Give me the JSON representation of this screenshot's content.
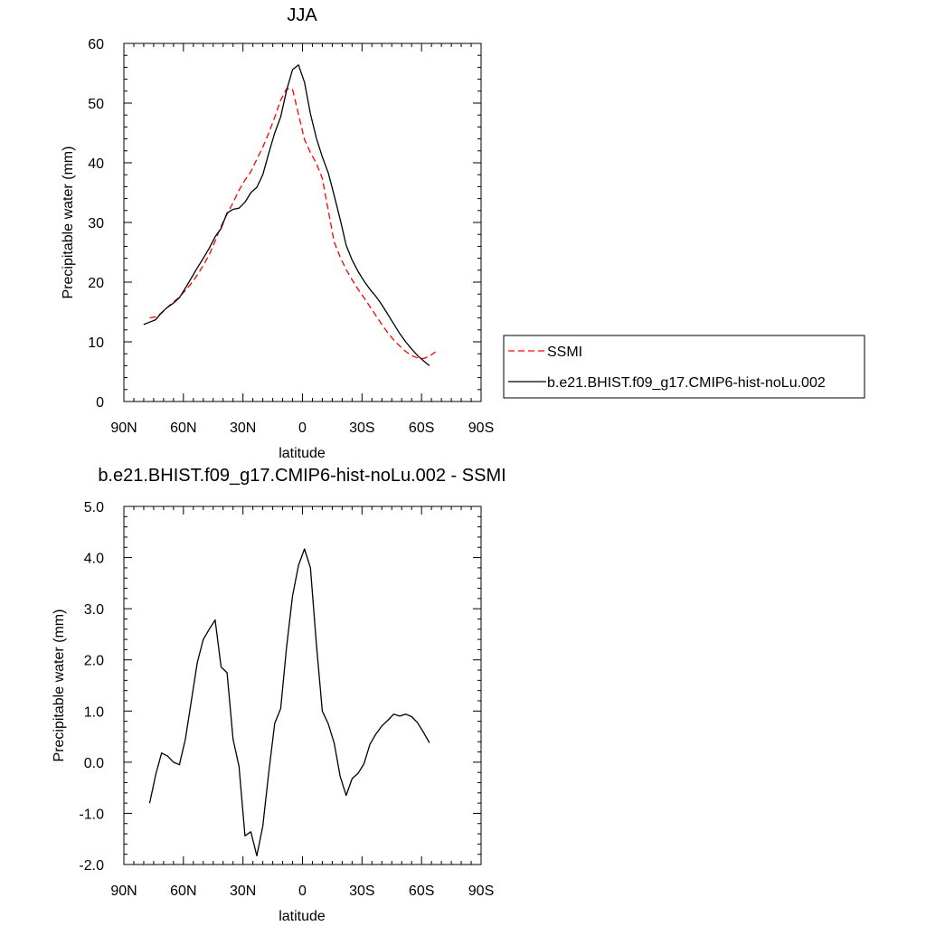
{
  "legend": {
    "entries": [
      {
        "label": "SSMI",
        "color": "#ff0000",
        "dash": true
      },
      {
        "label": "b.e21.BHIST.f09_g17.CMIP6-hist-noLu.002",
        "color": "#000000",
        "dash": false
      }
    ]
  },
  "chart_data": [
    {
      "type": "line",
      "title": "JJA",
      "xlabel": "latitude",
      "ylabel": "Precipitable water (mm)",
      "xlim": [
        90,
        -90
      ],
      "ylim": [
        0,
        60
      ],
      "xticks": [
        {
          "value": 90,
          "label": "90N"
        },
        {
          "value": 60,
          "label": "60N"
        },
        {
          "value": 30,
          "label": "30N"
        },
        {
          "value": 0,
          "label": "0"
        },
        {
          "value": -30,
          "label": "30S"
        },
        {
          "value": -60,
          "label": "60S"
        },
        {
          "value": -90,
          "label": "90S"
        }
      ],
      "yticks": [
        {
          "value": 0,
          "label": "0"
        },
        {
          "value": 10,
          "label": "10"
        },
        {
          "value": 20,
          "label": "20"
        },
        {
          "value": 30,
          "label": "30"
        },
        {
          "value": 40,
          "label": "40"
        },
        {
          "value": 50,
          "label": "50"
        },
        {
          "value": 60,
          "label": "60"
        }
      ],
      "series": [
        {
          "name": "SSMI",
          "color": "#ff0000",
          "dash": true,
          "x": [
            77,
            74,
            71,
            68,
            65,
            62,
            59,
            56,
            53,
            50,
            47,
            44,
            41,
            38,
            35,
            32,
            29,
            26,
            23,
            20,
            17,
            14,
            11,
            8,
            5,
            2,
            -1,
            -4,
            -7,
            -10,
            -13,
            -16,
            -19,
            -22,
            -25,
            -28,
            -31,
            -34,
            -37,
            -40,
            -43,
            -46,
            -49,
            -52,
            -55,
            -58,
            -61,
            -64,
            -67
          ],
          "y": [
            14.0,
            14.2,
            14.8,
            15.8,
            16.7,
            17.5,
            18.6,
            19.8,
            21.2,
            22.8,
            24.6,
            26.9,
            29.4,
            31.4,
            33.3,
            35.4,
            37.1,
            38.5,
            40.6,
            42.6,
            45.0,
            47.6,
            50.5,
            52.4,
            52.3,
            48.1,
            43.9,
            41.7,
            39.9,
            37.4,
            32.0,
            26.7,
            24.2,
            22.1,
            20.4,
            18.8,
            17.4,
            15.9,
            14.4,
            12.9,
            11.5,
            10.3,
            9.3,
            8.4,
            7.7,
            7.3,
            7.2,
            7.6,
            8.3
          ]
        },
        {
          "name": "b.e21.BHIST.f09_g17.CMIP6-hist-noLu.002",
          "color": "#000000",
          "dash": false,
          "x": [
            80,
            77,
            74,
            71,
            68,
            65,
            62,
            59,
            56,
            53,
            50,
            47,
            44,
            41,
            38,
            35,
            32,
            29,
            26,
            23,
            20,
            17,
            14,
            11,
            8,
            5,
            2,
            -1,
            -4,
            -7,
            -10,
            -13,
            -16,
            -19,
            -22,
            -25,
            -28,
            -31,
            -34,
            -37,
            -40,
            -43,
            -46,
            -49,
            -52,
            -55,
            -58,
            -61,
            -64
          ],
          "y": [
            12.9,
            13.3,
            13.7,
            14.9,
            15.8,
            16.5,
            17.4,
            19.0,
            20.7,
            22.4,
            24.0,
            25.7,
            27.6,
            29.0,
            31.6,
            32.2,
            32.4,
            33.4,
            35.0,
            35.9,
            38.0,
            41.6,
            45.0,
            47.7,
            52.1,
            55.6,
            56.4,
            53.5,
            48.2,
            44.1,
            41.0,
            38.3,
            34.5,
            30.5,
            26.2,
            23.7,
            21.8,
            20.2,
            18.8,
            17.6,
            16.2,
            14.6,
            13.0,
            11.4,
            10.0,
            8.8,
            7.7,
            6.8,
            6.0
          ]
        }
      ]
    },
    {
      "type": "line",
      "title": "b.e21.BHIST.f09_g17.CMIP6-hist-noLu.002 - SSMI",
      "xlabel": "latitude",
      "ylabel": "Precipitable water (mm)",
      "xlim": [
        90,
        -90
      ],
      "ylim": [
        -2.0,
        5.0
      ],
      "xticks": [
        {
          "value": 90,
          "label": "90N"
        },
        {
          "value": 60,
          "label": "60N"
        },
        {
          "value": 30,
          "label": "30N"
        },
        {
          "value": 0,
          "label": "0"
        },
        {
          "value": -30,
          "label": "30S"
        },
        {
          "value": -60,
          "label": "60S"
        },
        {
          "value": -90,
          "label": "90S"
        }
      ],
      "yticks": [
        {
          "value": -2.0,
          "label": "-2.0"
        },
        {
          "value": -1.0,
          "label": "-1.0"
        },
        {
          "value": 0.0,
          "label": "0.0"
        },
        {
          "value": 1.0,
          "label": "1.0"
        },
        {
          "value": 2.0,
          "label": "2.0"
        },
        {
          "value": 3.0,
          "label": "3.0"
        },
        {
          "value": 4.0,
          "label": "4.0"
        },
        {
          "value": 5.0,
          "label": "5.0"
        }
      ],
      "series": [
        {
          "color": "#000000",
          "dash": false,
          "x": [
            77,
            74,
            71,
            68,
            65,
            62,
            59,
            56,
            53,
            50,
            47,
            44,
            41,
            38,
            35,
            32,
            29,
            26,
            23,
            20,
            17,
            14,
            11,
            8,
            5,
            2,
            -1,
            -4,
            -7,
            -10,
            -13,
            -16,
            -19,
            -22,
            -25,
            -28,
            -31,
            -34,
            -37,
            -40,
            -43,
            -46,
            -49,
            -52,
            -55,
            -58,
            -61,
            -64
          ],
          "y": [
            -0.8,
            -0.25,
            0.18,
            0.12,
            0.0,
            -0.05,
            0.45,
            1.2,
            1.95,
            2.4,
            2.6,
            2.78,
            1.86,
            1.75,
            0.45,
            -0.08,
            -1.44,
            -1.36,
            -1.83,
            -1.25,
            -0.2,
            0.76,
            1.05,
            2.25,
            3.25,
            3.85,
            4.17,
            3.8,
            2.3,
            1.0,
            0.75,
            0.37,
            -0.28,
            -0.65,
            -0.32,
            -0.22,
            -0.03,
            0.35,
            0.55,
            0.71,
            0.82,
            0.94,
            0.9,
            0.94,
            0.89,
            0.77,
            0.58,
            0.38
          ]
        }
      ]
    }
  ]
}
